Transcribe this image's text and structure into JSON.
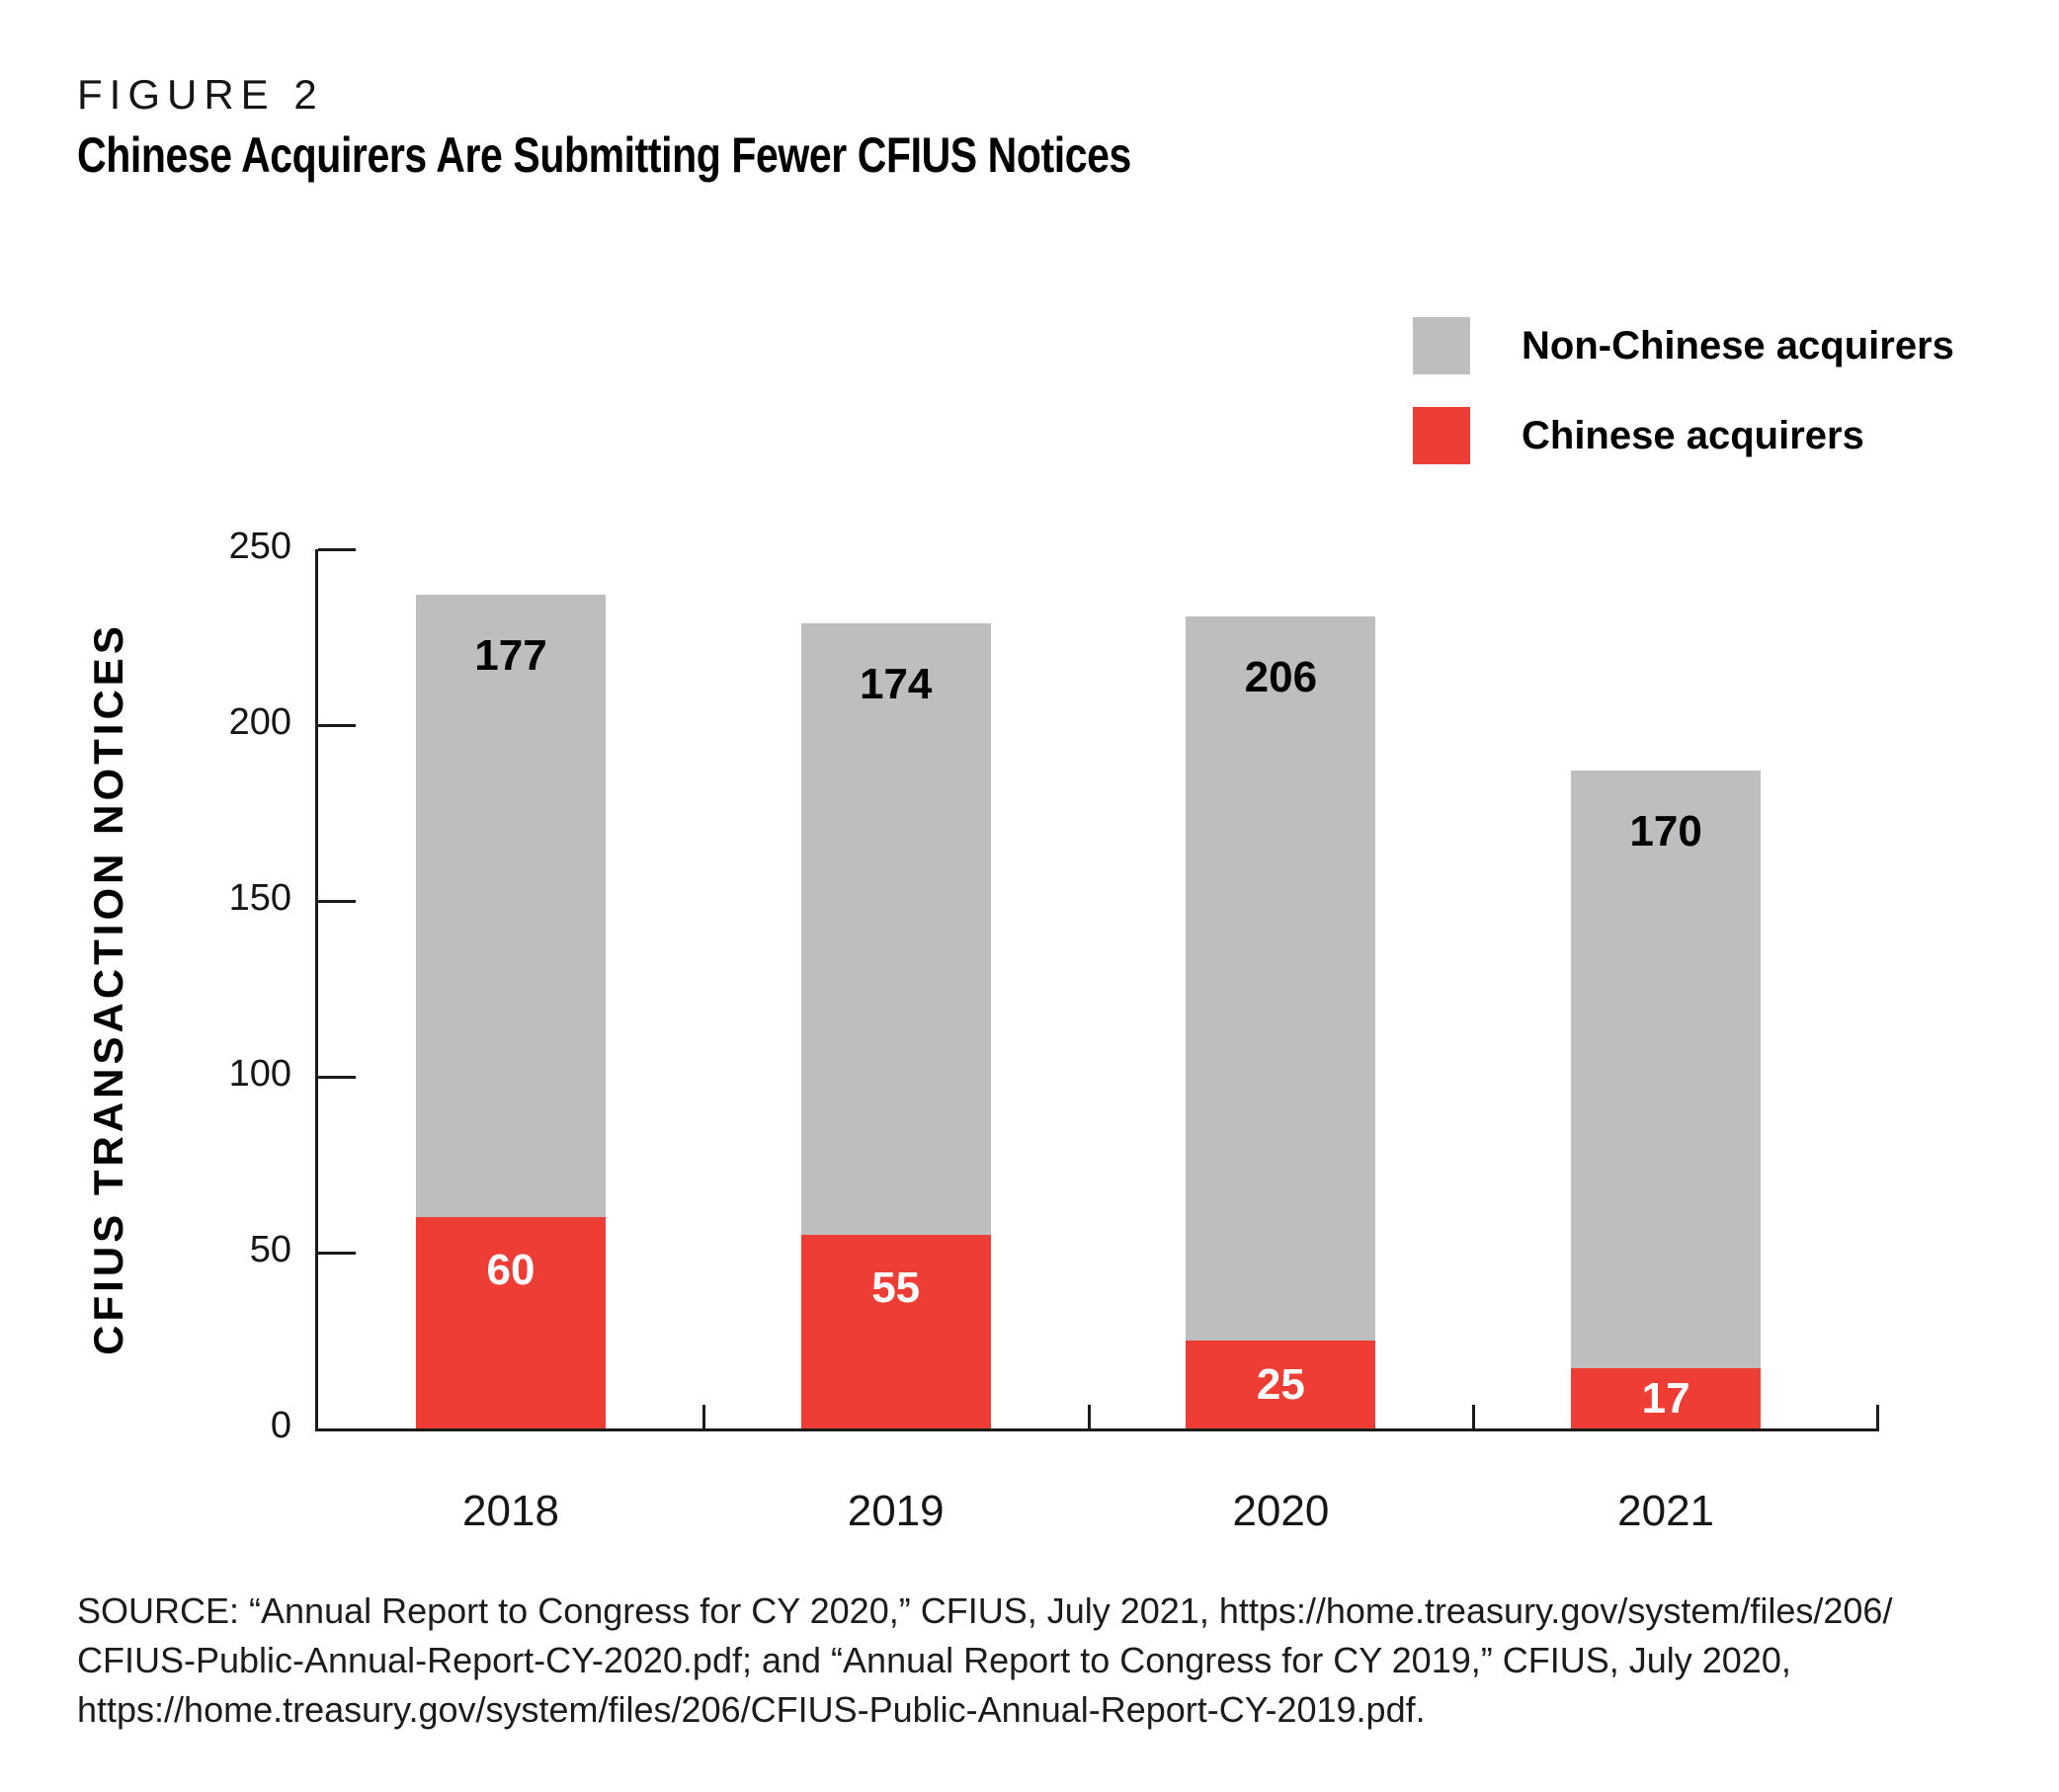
{
  "figure_label": "FIGURE 2",
  "title": "Chinese Acquirers Are Submitting Fewer CFIUS Notices",
  "legend": [
    {
      "label": "Non-Chinese acquirers",
      "color": "#bebec0"
    },
    {
      "label": "Chinese acquirers",
      "color": "#ee3d35"
    }
  ],
  "chart_data": {
    "type": "bar",
    "stacked": true,
    "categories": [
      "2018",
      "2019",
      "2020",
      "2021"
    ],
    "series": [
      {
        "name": "Chinese acquirers",
        "color": "#ee3d35",
        "label_color": "#ffffff",
        "values": [
          60,
          55,
          25,
          17
        ]
      },
      {
        "name": "Non-Chinese acquirers",
        "color": "#bebec0",
        "label_color": "#000000",
        "values": [
          177,
          174,
          206,
          170
        ]
      }
    ],
    "totals": [
      237,
      229,
      231,
      187
    ],
    "title": "Chinese Acquirers Are Submitting Fewer CFIUS Notices",
    "xlabel": "",
    "ylabel": "CFIUS TRANSACTION NOTICES",
    "ylim": [
      0,
      250
    ],
    "yticks": [
      0,
      50,
      100,
      150,
      200,
      250
    ],
    "grid": false,
    "legend_position": "top-right"
  },
  "source": {
    "lines": [
      "SOURCE: “Annual Report to Congress for CY 2020,” CFIUS, July 2021, https://home.treasury.gov/system/files/206/",
      "CFIUS-Public-Annual-Report-CY-2020.pdf; and “Annual Report to Congress for CY 2019,” CFIUS, July 2020,",
      "https://home.treasury.gov/system/files/206/CFIUS-Public-Annual-Report-CY-2019.pdf."
    ]
  }
}
